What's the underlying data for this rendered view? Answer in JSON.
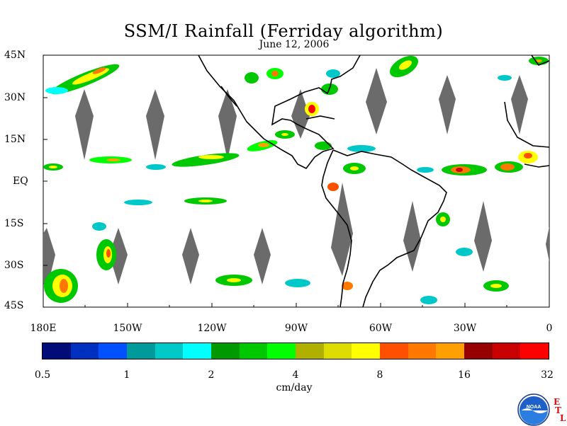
{
  "title": "SSM/I Rainfall (Ferriday algorithm)",
  "subtitle": "June 12, 2006",
  "lat_labels": [
    "45N",
    "30N",
    "15N",
    "EQ",
    "15S",
    "30S",
    "45S"
  ],
  "lon_labels": [
    "180E",
    "150W",
    "120W",
    "90W",
    "60W",
    "30W",
    "0"
  ],
  "colorbar": {
    "colors": [
      "#000c78",
      "#0030c0",
      "#0050ff",
      "#009a9a",
      "#00c8c8",
      "#00ffff",
      "#009a00",
      "#00c800",
      "#00ff00",
      "#b0b000",
      "#dcdc00",
      "#ffff00",
      "#ff5000",
      "#ff7800",
      "#ffa000",
      "#960000",
      "#c80000",
      "#ff0000"
    ],
    "tick_labels": [
      "0.5",
      "1",
      "2",
      "4",
      "8",
      "16",
      "32"
    ],
    "units": "cm/day"
  },
  "logo": {
    "text": "NOAA",
    "letters": [
      "E",
      "T",
      "L"
    ]
  }
}
